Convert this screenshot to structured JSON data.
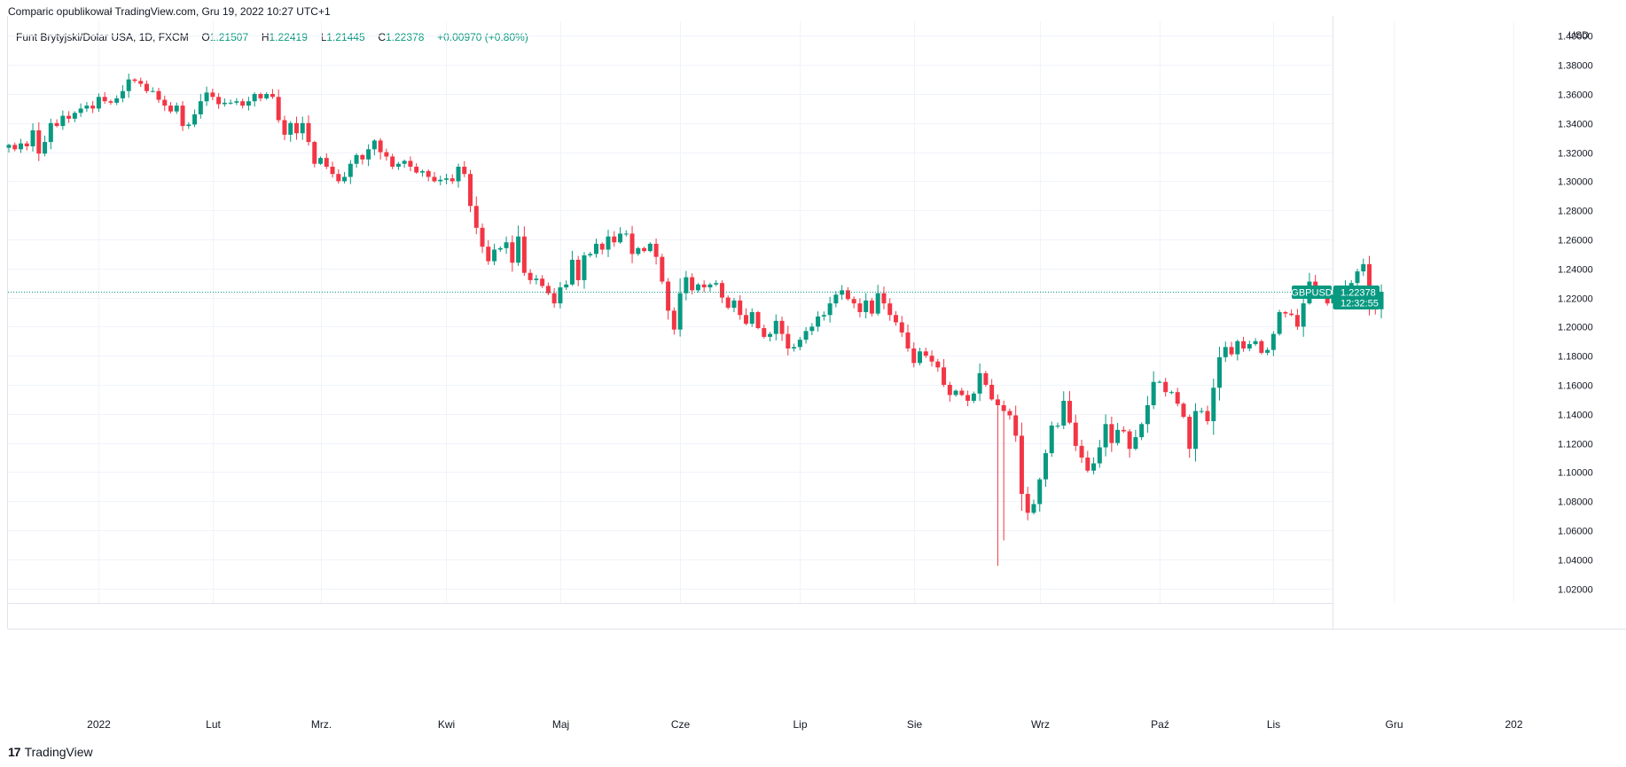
{
  "header": {
    "text": "Comparic opublikował TradingView.com, Gru 19, 2022 10:27 UTC+1"
  },
  "legend": {
    "symbol": "Funt Brytyjski/Dolar USA, 1D, FXCM",
    "open_label": "O",
    "open": "1.21507",
    "high_label": "H",
    "high": "1.22419",
    "low_label": "L",
    "low": "1.21445",
    "close_label": "C",
    "close": "1.22378",
    "change": "+0.00970 (+0.80%)"
  },
  "currency": "USD",
  "price_tag": {
    "symbol": "GBPUSD",
    "price": "1.22378",
    "countdown": "12:32:55"
  },
  "footer": {
    "brand": "TradingView",
    "logo_mark": "17"
  },
  "colors": {
    "up": "#089981",
    "down": "#f23645",
    "grid": "#f0f3fa",
    "axis_text": "#131722"
  },
  "chart_data": {
    "type": "candlestick",
    "symbol": "GBPUSD",
    "interval": "1D",
    "ylim": [
      1.01,
      1.41
    ],
    "y_ticks": [
      "1.02000",
      "1.04000",
      "1.06000",
      "1.08000",
      "1.10000",
      "1.12000",
      "1.14000",
      "1.16000",
      "1.18000",
      "1.20000",
      "1.22000",
      "1.24000",
      "1.26000",
      "1.28000",
      "1.30000",
      "1.32000",
      "1.34000",
      "1.36000",
      "1.38000",
      "1.40000"
    ],
    "x_labels": [
      {
        "label": "2022",
        "day": 15
      },
      {
        "label": "Lut",
        "day": 34
      },
      {
        "label": "Mrz.",
        "day": 52
      },
      {
        "label": "Kwi",
        "day": 73
      },
      {
        "label": "Maj",
        "day": 92
      },
      {
        "label": "Cze",
        "day": 112
      },
      {
        "label": "Lip",
        "day": 132
      },
      {
        "label": "Sie",
        "day": 151
      },
      {
        "label": "Wrz",
        "day": 172
      },
      {
        "label": "Paź",
        "day": 192
      },
      {
        "label": "Lis",
        "day": 211
      },
      {
        "label": "Gru",
        "day": 231
      },
      {
        "label": "202",
        "day": 251
      }
    ],
    "last_price": 1.22378,
    "closes": [
      1.325,
      1.322,
      1.326,
      1.324,
      1.335,
      1.319,
      1.327,
      1.34,
      1.338,
      1.345,
      1.343,
      1.347,
      1.35,
      1.352,
      1.35,
      1.358,
      1.355,
      1.354,
      1.357,
      1.362,
      1.37,
      1.369,
      1.367,
      1.362,
      1.362,
      1.356,
      1.352,
      1.348,
      1.352,
      1.338,
      1.339,
      1.346,
      1.355,
      1.361,
      1.358,
      1.353,
      1.354,
      1.354,
      1.355,
      1.352,
      1.355,
      1.36,
      1.357,
      1.36,
      1.358,
      1.342,
      1.332,
      1.34,
      1.333,
      1.34,
      1.327,
      1.312,
      1.316,
      1.31,
      1.305,
      1.3,
      1.303,
      1.312,
      1.318,
      1.315,
      1.322,
      1.328,
      1.32,
      1.317,
      1.31,
      1.312,
      1.314,
      1.31,
      1.306,
      1.307,
      1.303,
      1.3,
      1.301,
      1.302,
      1.3,
      1.31,
      1.305,
      1.283,
      1.268,
      1.255,
      1.245,
      1.253,
      1.254,
      1.258,
      1.244,
      1.262,
      1.237,
      1.232,
      1.233,
      1.228,
      1.223,
      1.216,
      1.227,
      1.229,
      1.246,
      1.232,
      1.249,
      1.25,
      1.257,
      1.253,
      1.262,
      1.258,
      1.264,
      1.264,
      1.25,
      1.254,
      1.252,
      1.257,
      1.248,
      1.231,
      1.211,
      1.198,
      1.223,
      1.234,
      1.225,
      1.229,
      1.227,
      1.229,
      1.23,
      1.22,
      1.213,
      1.218,
      1.208,
      1.202,
      1.21,
      1.199,
      1.193,
      1.195,
      1.204,
      1.195,
      1.185,
      1.186,
      1.191,
      1.197,
      1.2,
      1.207,
      1.208,
      1.216,
      1.222,
      1.225,
      1.219,
      1.216,
      1.21,
      1.218,
      1.209,
      1.223,
      1.216,
      1.208,
      1.203,
      1.196,
      1.185,
      1.175,
      1.183,
      1.18,
      1.176,
      1.172,
      1.16,
      1.153,
      1.156,
      1.153,
      1.149,
      1.154,
      1.168,
      1.16,
      1.15,
      1.146,
      1.142,
      1.139,
      1.125,
      1.085,
      1.072,
      1.078,
      1.095,
      1.113,
      1.132,
      1.132,
      1.149,
      1.134,
      1.118,
      1.11,
      1.101,
      1.106,
      1.117,
      1.133,
      1.12,
      1.129,
      1.128,
      1.116,
      1.124,
      1.133,
      1.146,
      1.162,
      1.162,
      1.155,
      1.155,
      1.147,
      1.138,
      1.116,
      1.142,
      1.142,
      1.135,
      1.158,
      1.179,
      1.186,
      1.181,
      1.19,
      1.185,
      1.188,
      1.19,
      1.182,
      1.184,
      1.195,
      1.21,
      1.209,
      1.208,
      1.2,
      1.216,
      1.231,
      1.225,
      1.225,
      1.216,
      1.222,
      1.222,
      1.228,
      1.23,
      1.238,
      1.243,
      1.217,
      1.212,
      1.224
    ]
  }
}
